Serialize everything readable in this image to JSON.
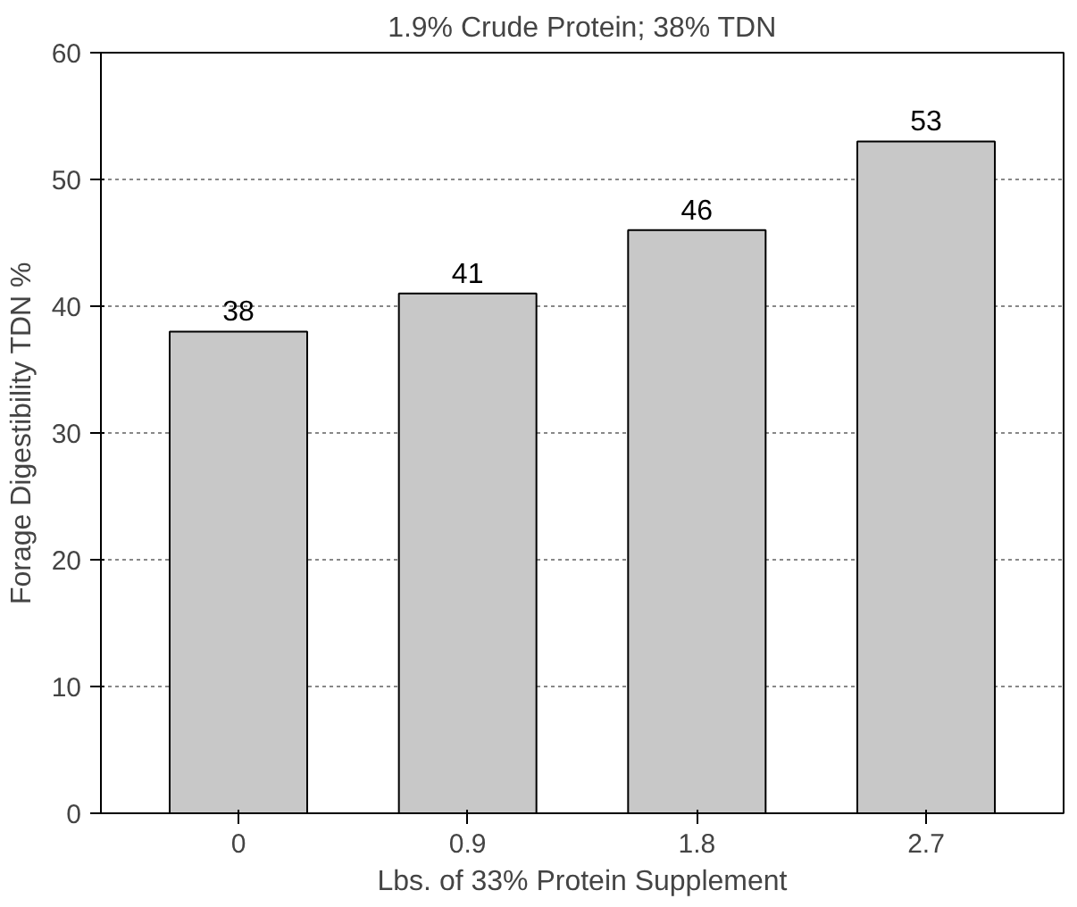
{
  "chart_data": {
    "type": "bar",
    "subtitle": "1.9% Crude Protein; 38% TDN",
    "xlabel": "Lbs. of 33% Protein Supplement",
    "ylabel": "Forage Digestibility TDN %",
    "categories": [
      "0",
      "0.9",
      "1.8",
      "2.7"
    ],
    "values": [
      38,
      41,
      46,
      53
    ],
    "color": "#c8c8c8",
    "data_labels": true,
    "ylim": [
      0,
      60
    ],
    "yticks": [
      0,
      10,
      20,
      30,
      40,
      50,
      60
    ],
    "grid": "y"
  }
}
